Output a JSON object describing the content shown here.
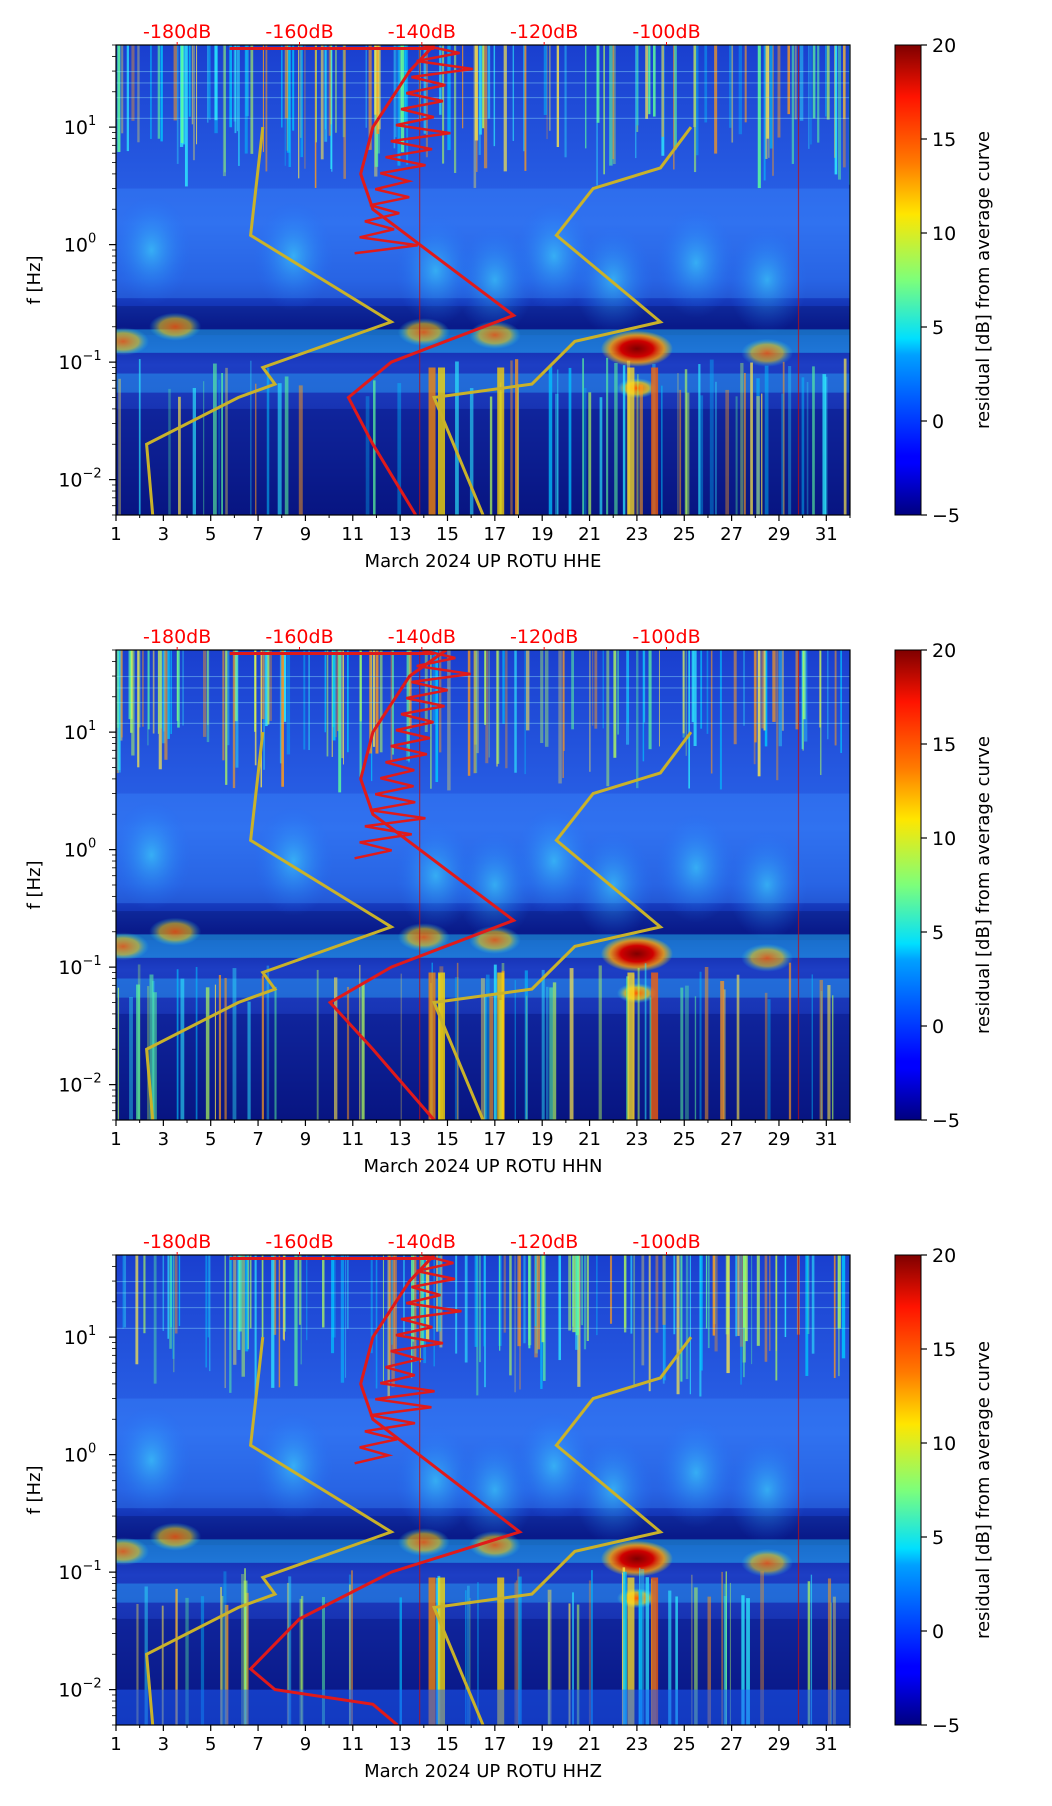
{
  "figure": {
    "colorbar": {
      "label": "residual [dB] from average curve",
      "ticks": [
        "20",
        "15",
        "10",
        "5",
        "0",
        "−5"
      ],
      "range": [
        -5,
        20
      ],
      "colormap": "jet"
    },
    "ylabel": "f [Hz]",
    "top_axis": {
      "color": "#ff0000",
      "labels": [
        "-180dB",
        "-160dB",
        "-140dB",
        "-120dB",
        "-100dB"
      ]
    },
    "x_ticks": [
      "1",
      "3",
      "5",
      "7",
      "9",
      "11",
      "13",
      "15",
      "17",
      "19",
      "21",
      "23",
      "25",
      "27",
      "29",
      "31"
    ],
    "y_ticks": [
      {
        "base": "10",
        "exp": "1"
      },
      {
        "base": "10",
        "exp": "0"
      },
      {
        "base": "10",
        "exp": "−1"
      },
      {
        "base": "10",
        "exp": "−2"
      }
    ],
    "curve_colors": {
      "average": "#e01a1a",
      "model": "#c9b22a"
    }
  },
  "chart_data": [
    {
      "type": "heatmap",
      "xlabel": "March 2024 UP ROTU  HHE",
      "ylabel": "f [Hz]",
      "x_range": [
        1,
        32
      ],
      "y_range_hz": [
        0.005,
        50
      ],
      "y_scale": "log",
      "top_axis_db": [
        -180,
        -160,
        -140,
        -120,
        -100
      ],
      "colorbar_range_db": [
        -5,
        20
      ],
      "average_curve": [
        {
          "db": -138,
          "f": 50
        },
        {
          "db": -142,
          "f": 30
        },
        {
          "db": -148,
          "f": 10
        },
        {
          "db": -150,
          "f": 4
        },
        {
          "db": -148,
          "f": 2
        },
        {
          "db": -125,
          "f": 0.25
        },
        {
          "db": -145,
          "f": 0.1
        },
        {
          "db": -152,
          "f": 0.05
        },
        {
          "db": -148,
          "f": 0.02
        },
        {
          "db": -141,
          "f": 0.005
        }
      ],
      "model_curves": [
        [
          {
            "db": -184,
            "f": 0.005
          },
          {
            "db": -185,
            "f": 0.02
          },
          {
            "db": -170,
            "f": 0.05
          },
          {
            "db": -164,
            "f": 0.065
          },
          {
            "db": -166,
            "f": 0.09
          },
          {
            "db": -145,
            "f": 0.22
          },
          {
            "db": -168,
            "f": 1.2
          },
          {
            "db": -166,
            "f": 10
          }
        ],
        [
          {
            "db": -130,
            "f": 0.005
          },
          {
            "db": -138,
            "f": 0.05
          },
          {
            "db": -122,
            "f": 0.065
          },
          {
            "db": -115,
            "f": 0.15
          },
          {
            "db": -101,
            "f": 0.22
          },
          {
            "db": -118,
            "f": 1.2
          },
          {
            "db": -112,
            "f": 3
          },
          {
            "db": -101,
            "f": 4.5
          },
          {
            "db": -96,
            "f": 10
          }
        ]
      ]
    },
    {
      "type": "heatmap",
      "xlabel": "March 2024 UP ROTU  HHN",
      "ylabel": "f [Hz]",
      "x_range": [
        1,
        32
      ],
      "y_range_hz": [
        0.005,
        50
      ],
      "y_scale": "log",
      "top_axis_db": [
        -180,
        -160,
        -140,
        -120,
        -100
      ],
      "colorbar_range_db": [
        -5,
        20
      ],
      "average_curve": [
        {
          "db": -136,
          "f": 50
        },
        {
          "db": -142,
          "f": 30
        },
        {
          "db": -148,
          "f": 10
        },
        {
          "db": -150,
          "f": 4
        },
        {
          "db": -148,
          "f": 2
        },
        {
          "db": -125,
          "f": 0.25
        },
        {
          "db": -145,
          "f": 0.1
        },
        {
          "db": -155,
          "f": 0.05
        },
        {
          "db": -148,
          "f": 0.02
        },
        {
          "db": -138,
          "f": 0.005
        }
      ],
      "model_curves": [
        [
          {
            "db": -184,
            "f": 0.005
          },
          {
            "db": -185,
            "f": 0.02
          },
          {
            "db": -170,
            "f": 0.05
          },
          {
            "db": -164,
            "f": 0.065
          },
          {
            "db": -166,
            "f": 0.09
          },
          {
            "db": -145,
            "f": 0.22
          },
          {
            "db": -168,
            "f": 1.2
          },
          {
            "db": -166,
            "f": 10
          }
        ],
        [
          {
            "db": -130,
            "f": 0.005
          },
          {
            "db": -138,
            "f": 0.05
          },
          {
            "db": -122,
            "f": 0.065
          },
          {
            "db": -115,
            "f": 0.15
          },
          {
            "db": -101,
            "f": 0.22
          },
          {
            "db": -118,
            "f": 1.2
          },
          {
            "db": -112,
            "f": 3
          },
          {
            "db": -101,
            "f": 4.5
          },
          {
            "db": -96,
            "f": 10
          }
        ]
      ]
    },
    {
      "type": "heatmap",
      "xlabel": "March 2024 UP ROTU  HHZ",
      "ylabel": "f [Hz]",
      "x_range": [
        1,
        32
      ],
      "y_range_hz": [
        0.005,
        50
      ],
      "y_scale": "log",
      "top_axis_db": [
        -180,
        -160,
        -140,
        -120,
        -100
      ],
      "colorbar_range_db": [
        -5,
        20
      ],
      "average_curve": [
        {
          "db": -138,
          "f": 50
        },
        {
          "db": -142,
          "f": 30
        },
        {
          "db": -148,
          "f": 10
        },
        {
          "db": -150,
          "f": 4
        },
        {
          "db": -148,
          "f": 2
        },
        {
          "db": -124,
          "f": 0.22
        },
        {
          "db": -145,
          "f": 0.1
        },
        {
          "db": -160,
          "f": 0.04
        },
        {
          "db": -168,
          "f": 0.015
        },
        {
          "db": -164,
          "f": 0.01
        },
        {
          "db": -148,
          "f": 0.0075
        },
        {
          "db": -144,
          "f": 0.005
        }
      ],
      "model_curves": [
        [
          {
            "db": -184,
            "f": 0.005
          },
          {
            "db": -185,
            "f": 0.02
          },
          {
            "db": -170,
            "f": 0.05
          },
          {
            "db": -164,
            "f": 0.065
          },
          {
            "db": -166,
            "f": 0.09
          },
          {
            "db": -145,
            "f": 0.22
          },
          {
            "db": -168,
            "f": 1.2
          },
          {
            "db": -166,
            "f": 10
          }
        ],
        [
          {
            "db": -130,
            "f": 0.005
          },
          {
            "db": -138,
            "f": 0.05
          },
          {
            "db": -122,
            "f": 0.065
          },
          {
            "db": -115,
            "f": 0.15
          },
          {
            "db": -101,
            "f": 0.22
          },
          {
            "db": -118,
            "f": 1.2
          },
          {
            "db": -112,
            "f": 3
          },
          {
            "db": -101,
            "f": 4.5
          },
          {
            "db": -96,
            "f": 10
          }
        ]
      ]
    }
  ]
}
